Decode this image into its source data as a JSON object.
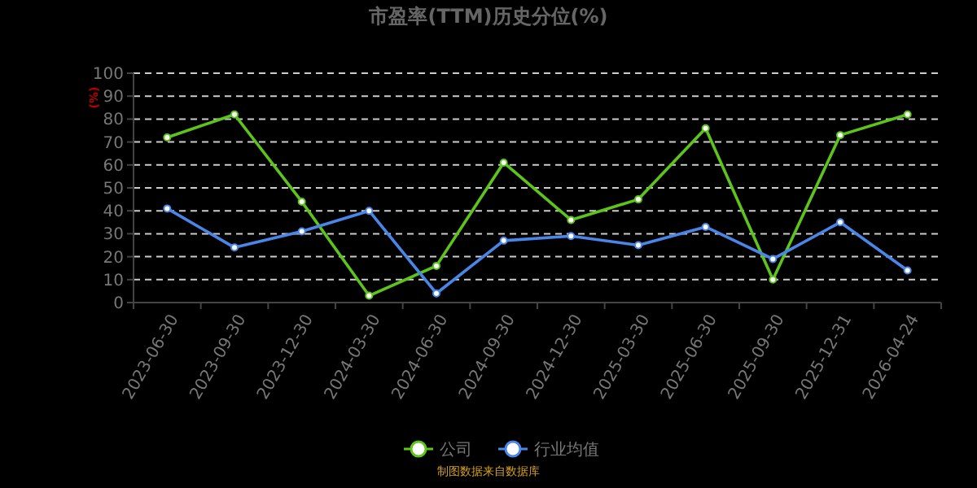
{
  "chart_data": {
    "type": "line",
    "title": "市盈率(TTM)历史分位(%)",
    "ylabel": "(%)",
    "categories": [
      "2023-06-30",
      "2023-09-30",
      "2023-12-30",
      "2024-03-30",
      "2024-06-30",
      "2024-09-30",
      "2024-12-30",
      "2025-03-30",
      "2025-06-30",
      "2025-09-30",
      "2025-12-31",
      "2026-04-24"
    ],
    "series": [
      {
        "name": "公司",
        "color": "#5cc41a",
        "values": [
          72,
          82,
          44,
          3,
          16,
          61,
          36,
          45,
          76,
          10,
          73,
          82
        ]
      },
      {
        "name": "行业均值",
        "color": "#4a86e8",
        "values": [
          41,
          24,
          31,
          40,
          4,
          27,
          29,
          25,
          33,
          19,
          35,
          14
        ]
      }
    ],
    "ylim": [
      0,
      100
    ],
    "yticks": [
      0,
      10,
      20,
      30,
      40,
      50,
      60,
      70,
      80,
      90,
      100
    ],
    "grid": "y",
    "legend": "bottom",
    "marker": "circle",
    "line_style": "solid",
    "annotations": [
      "制图数据来自数据库"
    ]
  }
}
